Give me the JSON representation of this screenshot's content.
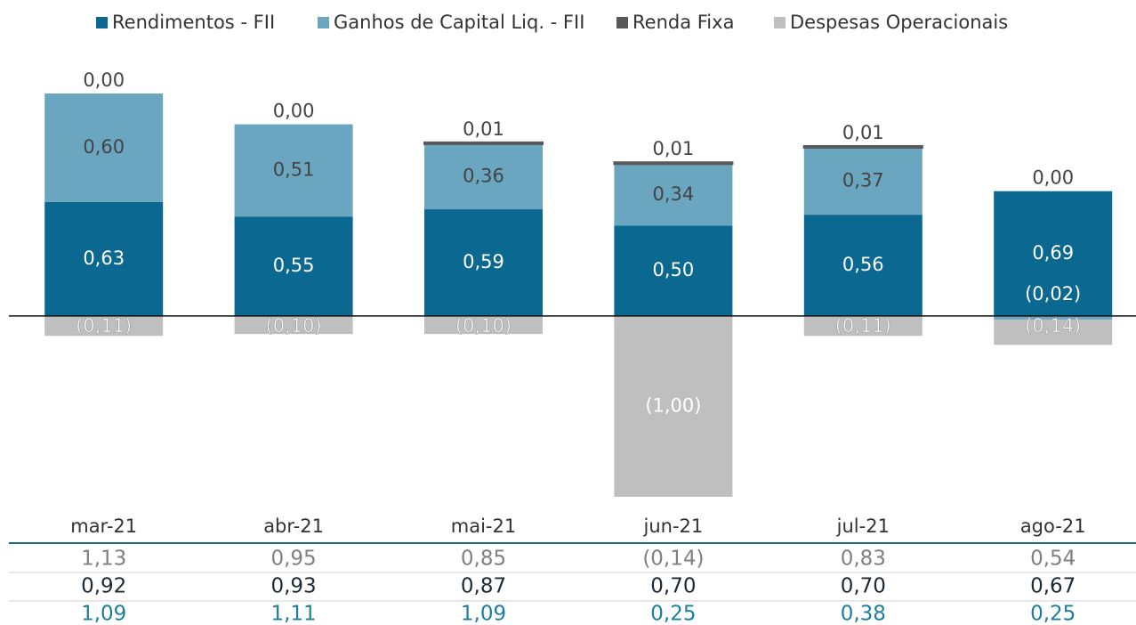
{
  "chart_data": {
    "type": "stacked_bar",
    "categories": [
      "mar-21",
      "abr-21",
      "mai-21",
      "jun-21",
      "jul-21",
      "ago-21"
    ],
    "series": [
      {
        "name": "Rendimentos - FII",
        "color": "#0a6891",
        "values": [
          0.63,
          0.55,
          0.59,
          0.5,
          0.56,
          0.69
        ],
        "value_labels": [
          "0,63",
          "0,55",
          "0,59",
          "0,50",
          "0,56",
          "0,69"
        ]
      },
      {
        "name": "Ganhos de Capital Liq. - FII",
        "color": "#6aa6c0",
        "values": [
          0.6,
          0.51,
          0.36,
          0.34,
          0.37,
          -0.02
        ],
        "value_labels": [
          "0,60",
          "0,51",
          "0,36",
          "0,34",
          "0,37",
          "(0,02)"
        ]
      },
      {
        "name": "Renda Fixa",
        "color": "#595959",
        "values": [
          0.0,
          0.0,
          0.01,
          0.01,
          0.01,
          0.0
        ],
        "value_labels": [
          "0,00",
          "0,00",
          "0,01",
          "0,01",
          "0,01",
          "0,00"
        ]
      },
      {
        "name": "Despesas Operacionais",
        "color": "#bfbfbf",
        "values": [
          -0.11,
          -0.1,
          -0.1,
          -1.0,
          -0.11,
          -0.14
        ],
        "value_labels": [
          "(0,11)",
          "(0,10)",
          "(0,10)",
          "(1,00)",
          "(0,11)",
          "(0,14)"
        ]
      }
    ],
    "ylim": [
      -1.0,
      1.25
    ],
    "legend": "top"
  },
  "table": {
    "rows": [
      {
        "color": "#808080",
        "cells": [
          "1,13",
          "0,95",
          "0,85",
          "(0,14)",
          "0,83",
          "0,54"
        ]
      },
      {
        "color": "#1c2a33",
        "cells": [
          "0,92",
          "0,93",
          "0,87",
          "0,70",
          "0,70",
          "0,67"
        ]
      },
      {
        "color": "#1a7fa0",
        "cells": [
          "1,09",
          "1,11",
          "1,09",
          "0,25",
          "0,38",
          "0,25"
        ]
      }
    ]
  }
}
